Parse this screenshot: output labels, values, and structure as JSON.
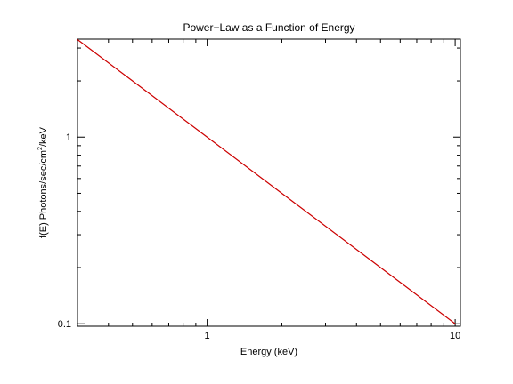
{
  "chart_data": {
    "type": "line",
    "title": "Power−Law as a Function of Energy",
    "xlabel": "Energy (keV)",
    "ylabel_prefix": "f(E)  Photons/sec/cm",
    "ylabel_superscript": "2",
    "ylabel_suffix": "/keV",
    "x_scale": "log",
    "y_scale": "log",
    "xlim": [
      0.3,
      10.5
    ],
    "ylim": [
      0.097,
      3.35
    ],
    "x_ticks": [
      {
        "value": 1,
        "label": "1"
      },
      {
        "value": 10,
        "label": "10"
      }
    ],
    "y_ticks": [
      {
        "value": 0.1,
        "label": "0.1"
      },
      {
        "value": 1,
        "label": "1"
      }
    ],
    "x_minor_ticks": [
      0.3,
      0.4,
      0.5,
      0.6,
      0.7,
      0.8,
      0.9,
      2,
      3,
      4,
      5,
      6,
      7,
      8,
      9
    ],
    "y_minor_ticks": [
      0.2,
      0.3,
      0.4,
      0.5,
      0.6,
      0.7,
      0.8,
      0.9,
      2,
      3
    ],
    "grid": false,
    "series": [
      {
        "color": "#cc0000",
        "x": [
          0.3,
          0.5,
          1,
          2,
          5,
          10
        ],
        "y": [
          3.333,
          2.0,
          1.0,
          0.5,
          0.2,
          0.1
        ]
      }
    ]
  }
}
